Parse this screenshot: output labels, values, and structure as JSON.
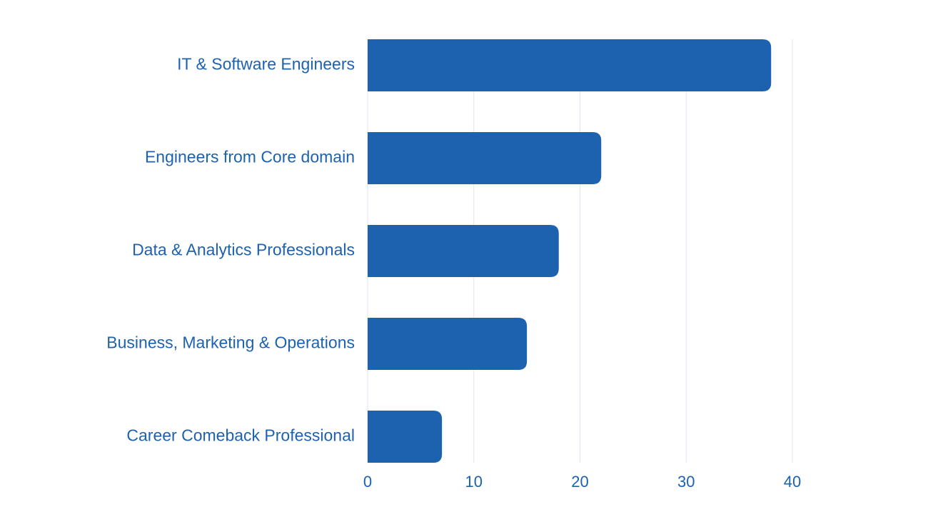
{
  "chart_data": {
    "type": "bar",
    "orientation": "horizontal",
    "categories": [
      "IT & Software Engineers",
      "Engineers from Core domain",
      "Data & Analytics Professionals",
      "Business, Marketing & Operations",
      "Career Comeback Professional"
    ],
    "values": [
      38,
      22,
      18,
      15,
      7
    ],
    "xlim": [
      0,
      40
    ],
    "xticks": [
      "0",
      "10",
      "20",
      "30",
      "40"
    ],
    "grid": true,
    "title": "",
    "xlabel": "",
    "ylabel": "",
    "bar_color": "#1d62ae",
    "text_color": "#1d62ae",
    "grid_color": "#dde6f2"
  }
}
